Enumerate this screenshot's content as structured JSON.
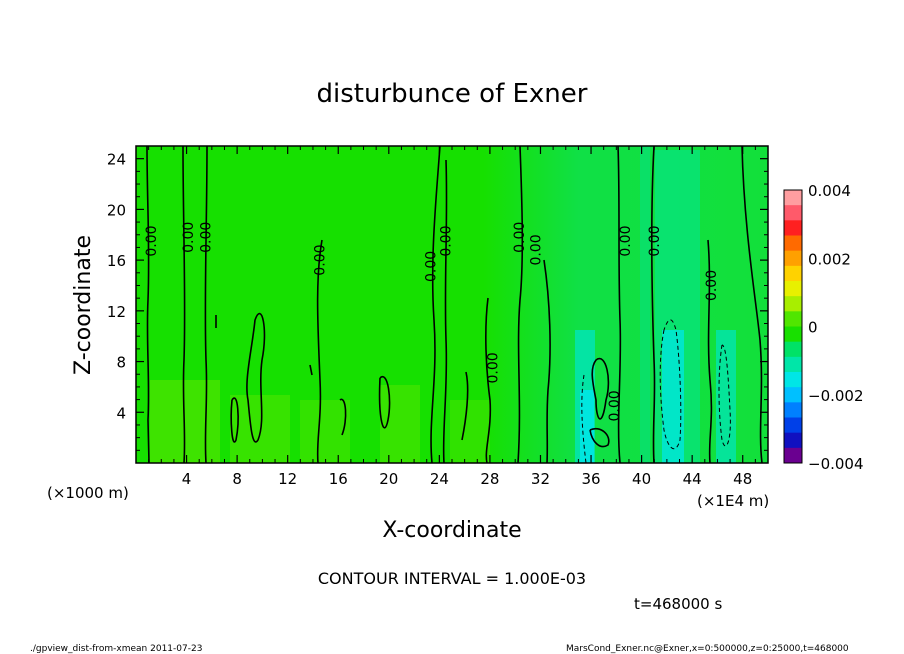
{
  "chart_data": {
    "type": "contour",
    "title": "disturbunce of Exner",
    "xlabel": "X-coordinate",
    "ylabel": "Z-coordinate",
    "x_unit": "(×1000 m)",
    "x_unit_right": "(×1E4 m)",
    "x_ticks": [
      4,
      8,
      12,
      16,
      20,
      24,
      28,
      32,
      36,
      40,
      44,
      48
    ],
    "y_ticks": [
      4,
      8,
      12,
      16,
      20,
      24
    ],
    "xlim": [
      0,
      50
    ],
    "ylim": [
      0,
      25
    ],
    "contour_interval": "CONTOUR INTERVAL = 1.000E-03",
    "contour_labels": [
      {
        "x": 1.2,
        "z": 17.5,
        "text": "0.00"
      },
      {
        "x": 4.1,
        "z": 17.8,
        "text": "0.00"
      },
      {
        "x": 5.5,
        "z": 17.8,
        "text": "0.00"
      },
      {
        "x": 14.5,
        "z": 16.0,
        "text": "0.00"
      },
      {
        "x": 23.3,
        "z": 15.5,
        "text": "0.00"
      },
      {
        "x": 24.5,
        "z": 17.5,
        "text": "0.00"
      },
      {
        "x": 28.2,
        "z": 7.5,
        "text": "0.00"
      },
      {
        "x": 30.3,
        "z": 17.8,
        "text": "0.00"
      },
      {
        "x": 31.6,
        "z": 16.8,
        "text": "0.00"
      },
      {
        "x": 37.8,
        "z": 4.5,
        "text": "0.00"
      },
      {
        "x": 38.7,
        "z": 17.5,
        "text": "0.00"
      },
      {
        "x": 41.0,
        "z": 17.5,
        "text": "0.00"
      },
      {
        "x": 45.5,
        "z": 14.0,
        "text": "0.00"
      }
    ],
    "colorbar": {
      "ticks": [
        "0.004",
        "0.002",
        "0",
        "−0.002",
        "−0.004"
      ],
      "colors": [
        "#ff9ea0",
        "#ff5a6a",
        "#ff2020",
        "#ff6a00",
        "#ffa000",
        "#ffd200",
        "#e8f000",
        "#a8ee00",
        "#50e600",
        "#18e000",
        "#00e266",
        "#00e6a8",
        "#00e6e6",
        "#00c0ff",
        "#0080ff",
        "#0040e8",
        "#1010c0",
        "#6a0090"
      ]
    },
    "time_label": "t=468000 s"
  },
  "footer": {
    "left": "./gpview_dist-from-xmean  2011-07-23",
    "right": "MarsCond_Exner.nc@Exner,x=0:500000,z=0:25000,t=468000"
  }
}
